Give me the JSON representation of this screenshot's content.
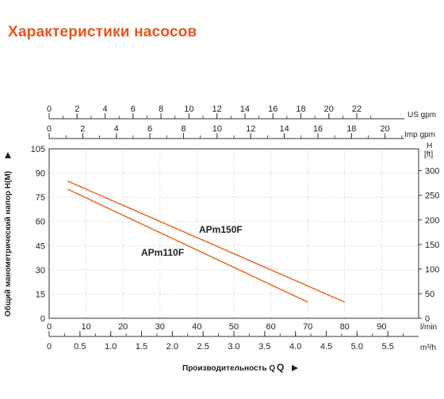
{
  "page": {
    "title": "Характеристики насосов",
    "title_color": "#e8541e",
    "curve_color": "#e8702a"
  },
  "chart_data": {
    "type": "line",
    "title": "",
    "xlabel": "Производительность Q",
    "ylabel": "Общий манометрический напор H(M)",
    "x_unit": "l/min",
    "xlim": [
      0,
      100
    ],
    "ylim": [
      0,
      105
    ],
    "y_ticks": [
      0,
      15,
      30,
      45,
      60,
      75,
      90,
      105
    ],
    "x_ticks": [
      0,
      10,
      20,
      30,
      40,
      50,
      60,
      70,
      80,
      90
    ],
    "grid": true,
    "series": [
      {
        "name": "APm150F",
        "x": [
          5,
          80
        ],
        "y": [
          85,
          10
        ]
      },
      {
        "name": "APm110F",
        "x": [
          5,
          70
        ],
        "y": [
          80,
          10
        ]
      }
    ],
    "secondary_axes": {
      "us_gpm": {
        "label": "US gpm",
        "ticks": [
          0,
          2,
          4,
          6,
          8,
          10,
          12,
          14,
          16,
          18,
          20,
          22
        ]
      },
      "imp_gpm": {
        "label": "Imp gpm",
        "ticks": [
          0,
          2,
          4,
          6,
          8,
          10,
          12,
          14,
          16,
          18,
          20
        ]
      },
      "m3h": {
        "label": "m³/h",
        "ticks": [
          "0",
          "0.5",
          "1.0",
          "1.5",
          "2.0",
          "2.5",
          "3.0",
          "3.5",
          "4.0",
          "4.5",
          "5.0",
          "5.5"
        ]
      },
      "ft": {
        "label_top": "H",
        "label_bottom": "[ft]",
        "ticks": [
          0,
          50,
          100,
          150,
          200,
          250,
          300
        ]
      }
    }
  }
}
